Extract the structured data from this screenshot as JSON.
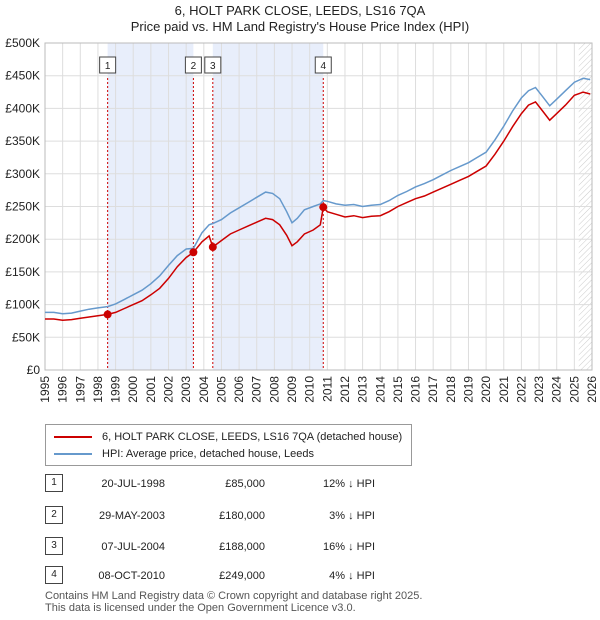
{
  "title_line1": "6, HOLT PARK CLOSE, LEEDS, LS16 7QA",
  "title_line2": "Price paid vs. HM Land Registry's House Price Index (HPI)",
  "legend": {
    "property": "6, HOLT PARK CLOSE, LEEDS, LS16 7QA (detached house)",
    "hpi": "HPI: Average price, detached house, Leeds"
  },
  "sales": [
    {
      "num": "1",
      "date": "20-JUL-1998",
      "price": "£85,000",
      "hpi": "12% ↓ HPI"
    },
    {
      "num": "2",
      "date": "29-MAY-2003",
      "price": "£180,000",
      "hpi": "3% ↓ HPI"
    },
    {
      "num": "3",
      "date": "07-JUL-2004",
      "price": "£188,000",
      "hpi": "16% ↓ HPI"
    },
    {
      "num": "4",
      "date": "08-OCT-2010",
      "price": "£249,000",
      "hpi": "4% ↓ HPI"
    }
  ],
  "footer_line1": "Contains HM Land Registry data © Crown copyright and database right 2025.",
  "footer_line2": "This data is licensed under the Open Government Licence v3.0.",
  "colors": {
    "property": "#cc0000",
    "hpi": "#6699cc",
    "shade": "#e8eefb",
    "grid": "#dddddd"
  },
  "chart_data": {
    "type": "line",
    "title": "Price paid vs. HM Land Registry's House Price Index (HPI)",
    "xlabel": "",
    "ylabel": "",
    "xlim": [
      1995,
      2026
    ],
    "ylim": [
      0,
      500000
    ],
    "yticks": [
      0,
      50000,
      100000,
      150000,
      200000,
      250000,
      300000,
      350000,
      400000,
      450000,
      500000
    ],
    "ytick_labels": [
      "£0",
      "£50K",
      "£100K",
      "£150K",
      "£200K",
      "£250K",
      "£300K",
      "£350K",
      "£400K",
      "£450K",
      "£500K"
    ],
    "xticks": [
      1995,
      1996,
      1997,
      1998,
      1999,
      2000,
      2001,
      2002,
      2003,
      2004,
      2005,
      2006,
      2007,
      2008,
      2009,
      2010,
      2011,
      2012,
      2013,
      2014,
      2015,
      2016,
      2017,
      2018,
      2019,
      2020,
      2021,
      2022,
      2023,
      2024,
      2025,
      2026
    ],
    "xtick_labels": [
      "1995",
      "1996",
      "1997",
      "1998",
      "1999",
      "2000",
      "2001",
      "2002",
      "2003",
      "2004",
      "2005",
      "2006",
      "2007",
      "2008",
      "2009",
      "2010",
      "2011",
      "2012",
      "2013",
      "2014",
      "2015",
      "2016",
      "2017",
      "2018",
      "2019",
      "2020",
      "2021",
      "2022",
      "2023",
      "2024",
      "2025",
      "2026"
    ],
    "shaded_spans": [
      [
        1998.55,
        2003.41
      ],
      [
        2004.51,
        2010.77
      ]
    ],
    "projection_start": 2025.25,
    "series": [
      {
        "name": "6, HOLT PARK CLOSE, LEEDS, LS16 7QA (detached house)",
        "x": [
          1995,
          1995.5,
          1996,
          1996.5,
          1997,
          1997.5,
          1998,
          1998.55,
          1999,
          1999.5,
          2000,
          2000.5,
          2001,
          2001.5,
          2002,
          2002.5,
          2003,
          2003.41,
          2003.9,
          2004.3,
          2004.51,
          2005,
          2005.5,
          2006,
          2006.5,
          2007,
          2007.5,
          2007.9,
          2008.3,
          2008.7,
          2009.0,
          2009.3,
          2009.7,
          2010.2,
          2010.6,
          2010.77,
          2011,
          2011.5,
          2012,
          2012.5,
          2013,
          2013.5,
          2014,
          2014.5,
          2015,
          2015.5,
          2016,
          2016.5,
          2017,
          2017.5,
          2018,
          2018.5,
          2019,
          2019.5,
          2020,
          2020.5,
          2021,
          2021.5,
          2022,
          2022.4,
          2022.8,
          2023.2,
          2023.6,
          2024,
          2024.5,
          2025,
          2025.5,
          2025.9
        ],
        "y": [
          78000,
          78000,
          76000,
          77000,
          79000,
          81000,
          83000,
          85000,
          88000,
          94000,
          100000,
          106000,
          115000,
          125000,
          140000,
          158000,
          172000,
          180000,
          196000,
          205000,
          188000,
          198000,
          208000,
          214000,
          220000,
          226000,
          232000,
          230000,
          222000,
          206000,
          190000,
          196000,
          208000,
          214000,
          222000,
          249000,
          242000,
          238000,
          234000,
          236000,
          233000,
          235000,
          236000,
          242000,
          250000,
          256000,
          262000,
          266000,
          272000,
          278000,
          284000,
          290000,
          296000,
          304000,
          312000,
          330000,
          350000,
          372000,
          392000,
          405000,
          410000,
          396000,
          382000,
          392000,
          405000,
          420000,
          425000,
          422000
        ]
      },
      {
        "name": "HPI: Average price, detached house, Leeds",
        "x": [
          1995,
          1995.5,
          1996,
          1996.5,
          1997,
          1997.5,
          1998,
          1998.55,
          1999,
          1999.5,
          2000,
          2000.5,
          2001,
          2001.5,
          2002,
          2002.5,
          2003,
          2003.41,
          2003.9,
          2004.3,
          2004.51,
          2005,
          2005.5,
          2006,
          2006.5,
          2007,
          2007.5,
          2007.9,
          2008.3,
          2008.7,
          2009.0,
          2009.3,
          2009.7,
          2010.2,
          2010.6,
          2010.77,
          2011,
          2011.5,
          2012,
          2012.5,
          2013,
          2013.5,
          2014,
          2014.5,
          2015,
          2015.5,
          2016,
          2016.5,
          2017,
          2017.5,
          2018,
          2018.5,
          2019,
          2019.5,
          2020,
          2020.5,
          2021,
          2021.5,
          2022,
          2022.4,
          2022.8,
          2023.2,
          2023.6,
          2024,
          2024.5,
          2025,
          2025.5,
          2025.9
        ],
        "y": [
          88000,
          88000,
          86000,
          87000,
          90000,
          93000,
          95000,
          97000,
          101000,
          108000,
          115000,
          122000,
          132000,
          144000,
          160000,
          175000,
          185000,
          186000,
          210000,
          222000,
          224000,
          230000,
          240000,
          248000,
          256000,
          264000,
          272000,
          270000,
          262000,
          242000,
          225000,
          232000,
          245000,
          250000,
          254000,
          259000,
          258000,
          254000,
          252000,
          253000,
          250000,
          252000,
          253000,
          259000,
          267000,
          273000,
          280000,
          285000,
          291000,
          298000,
          305000,
          311000,
          317000,
          325000,
          333000,
          352000,
          373000,
          396000,
          416000,
          427000,
          432000,
          418000,
          404000,
          414000,
          427000,
          440000,
          446000,
          444000
        ]
      }
    ],
    "sale_markers": [
      {
        "label": "1",
        "x": 1998.55,
        "y": 85000
      },
      {
        "label": "2",
        "x": 2003.41,
        "y": 180000
      },
      {
        "label": "3",
        "x": 2004.51,
        "y": 188000
      },
      {
        "label": "4",
        "x": 2010.77,
        "y": 249000
      }
    ]
  }
}
